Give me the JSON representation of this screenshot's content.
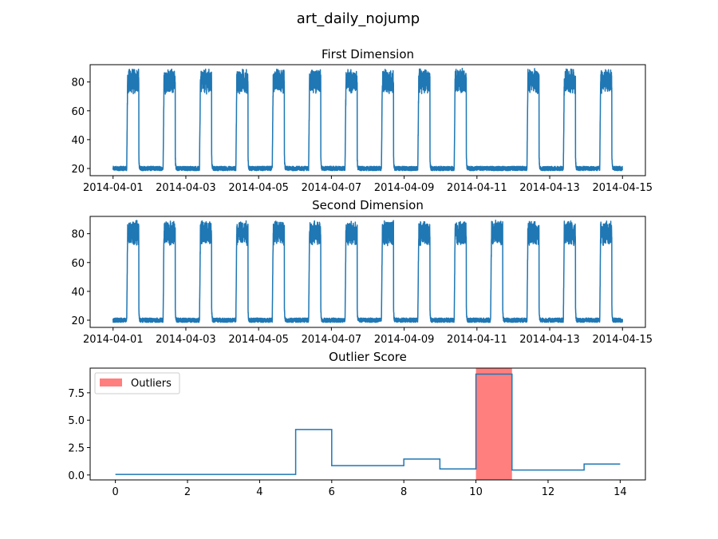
{
  "figure": {
    "suptitle": "art_daily_nojump"
  },
  "chart_data": [
    {
      "type": "line",
      "title": "First Dimension",
      "x_ticks": [
        "2014-04-01",
        "2014-04-03",
        "2014-04-05",
        "2014-04-07",
        "2014-04-09",
        "2014-04-11",
        "2014-04-13",
        "2014-04-15"
      ],
      "y_ticks": [
        20,
        40,
        60,
        80
      ],
      "xlim": [
        "2014-04-01",
        "2014-04-15"
      ],
      "ylim": [
        15,
        92
      ],
      "series": [
        {
          "color": "#1f77b4",
          "pattern": "daily square wave, low ~20 overnight, high ~73-88 during daytime (approx. 09:00-17:00)",
          "low_level": 20,
          "high_level_range": [
            73,
            88
          ],
          "active_days": [
            "2014-04-01",
            "2014-04-02",
            "2014-04-03",
            "2014-04-04",
            "2014-04-05",
            "2014-04-06",
            "2014-04-07",
            "2014-04-08",
            "2014-04-09",
            "2014-04-10",
            "2014-04-12",
            "2014-04-13",
            "2014-04-14"
          ],
          "flat_days": [
            "2014-04-11"
          ]
        }
      ]
    },
    {
      "type": "line",
      "title": "Second Dimension",
      "x_ticks": [
        "2014-04-01",
        "2014-04-03",
        "2014-04-05",
        "2014-04-07",
        "2014-04-09",
        "2014-04-11",
        "2014-04-13",
        "2014-04-15"
      ],
      "y_ticks": [
        20,
        40,
        60,
        80
      ],
      "xlim": [
        "2014-04-01",
        "2014-04-15"
      ],
      "ylim": [
        15,
        92
      ],
      "series": [
        {
          "color": "#1f77b4",
          "pattern": "daily square wave, low ~20 overnight, high ~73-88 during daytime (approx. 09:00-17:00)",
          "low_level": 20,
          "high_level_range": [
            73,
            88
          ],
          "active_days": [
            "2014-04-01",
            "2014-04-02",
            "2014-04-03",
            "2014-04-04",
            "2014-04-05",
            "2014-04-06",
            "2014-04-07",
            "2014-04-08",
            "2014-04-09",
            "2014-04-10",
            "2014-04-11",
            "2014-04-12",
            "2014-04-13",
            "2014-04-14"
          ],
          "flat_days": []
        }
      ]
    },
    {
      "type": "line",
      "title": "Outlier Score",
      "x_ticks": [
        0,
        2,
        4,
        6,
        8,
        10,
        12,
        14
      ],
      "y_ticks": [
        "0.0",
        "2.5",
        "5.0",
        "7.5"
      ],
      "xlim": [
        -0.7,
        14.7
      ],
      "ylim": [
        -0.45,
        9.75
      ],
      "series": [
        {
          "color": "#1f77b4",
          "step": "post",
          "x": [
            0,
            1,
            2,
            3,
            4,
            5,
            6,
            7,
            8,
            9,
            10,
            11,
            12,
            13,
            14
          ],
          "y": [
            0.05,
            0.05,
            0.05,
            0.05,
            0.05,
            4.15,
            0.85,
            0.85,
            1.45,
            0.55,
            9.2,
            0.45,
            0.45,
            1.0,
            1.0
          ]
        }
      ],
      "outlier_regions": [
        [
          10,
          11
        ]
      ],
      "outlier_color": "#ff7f7f",
      "legend": {
        "label": "Outliers",
        "position": "upper left"
      }
    }
  ]
}
